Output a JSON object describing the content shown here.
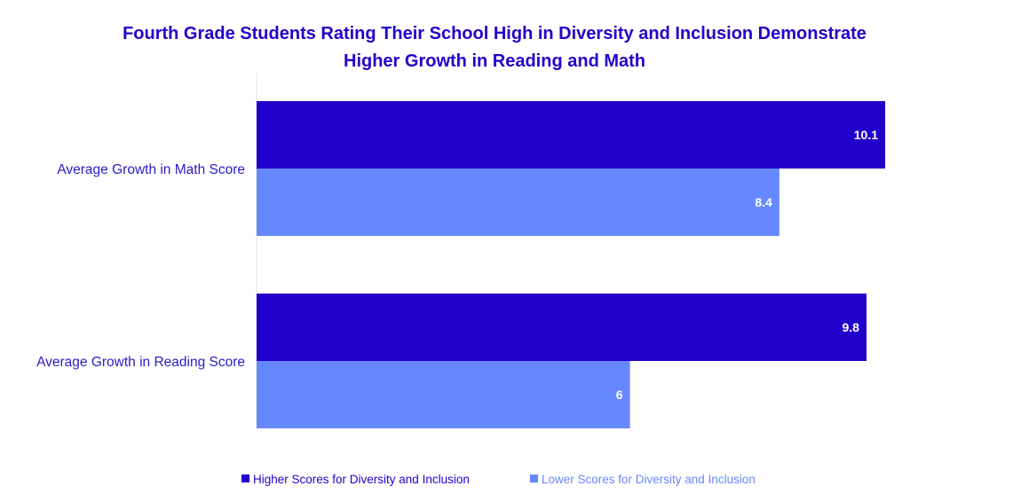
{
  "chart_data": {
    "type": "bar",
    "orientation": "horizontal",
    "title": "Fourth Grade Students Rating Their School High in Diversity and Inclusion Demonstrate Higher Growth in Reading and Math",
    "title_lines": [
      "Fourth Grade Students Rating Their School High in Diversity and Inclusion Demonstrate",
      "Higher Growth in Reading and Math"
    ],
    "categories": [
      "Average Growth in Math Score",
      "Average Growth in Reading Score"
    ],
    "series": [
      {
        "name": "Higher Scores for Diversity and Inclusion",
        "values": [
          10.1,
          9.8
        ],
        "color": "#2200cc"
      },
      {
        "name": "Lower Scores for Diversity and Inclusion",
        "values": [
          8.4,
          6
        ],
        "color": "#6688ff"
      }
    ],
    "value_labels": [
      [
        "10.1",
        "9.8"
      ],
      [
        "8.4",
        "6"
      ]
    ],
    "xlim": [
      0,
      12
    ],
    "grid": false,
    "legend_position": "bottom",
    "colors": {
      "title": "#2200cc",
      "category_label": "#2a1bc4",
      "axis_line": "#e4e4e4",
      "value_label": "#ffffff"
    }
  }
}
